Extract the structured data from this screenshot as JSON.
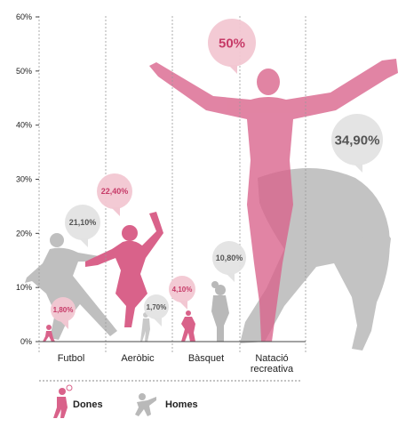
{
  "chart_data": {
    "type": "bar",
    "categories": [
      "Futbol",
      "Aeròbic",
      "Bàsquet",
      "Natació recreativa"
    ],
    "category_lines": [
      [
        "Futbol"
      ],
      [
        "Aeròbic"
      ],
      [
        "Bàsquet"
      ],
      [
        "Natació",
        "recreativa"
      ]
    ],
    "series": [
      {
        "name": "Dones",
        "values": [
          1.8,
          22.4,
          4.1,
          50.0
        ],
        "labels": [
          "1,80%",
          "22,40%",
          "4,10%",
          "50%"
        ],
        "color": "#d9628a",
        "bubble": "#f2c7d2",
        "text": "#c73b68"
      },
      {
        "name": "Homes",
        "values": [
          21.1,
          1.7,
          10.8,
          34.9
        ],
        "labels": [
          "21,10%",
          "1,70%",
          "10,80%",
          "34,90%"
        ],
        "color": "#b9b9b9",
        "bubble": "#e3e3e3",
        "text": "#555555"
      }
    ],
    "y_ticks": [
      "0%",
      "10%",
      "20%",
      "30%",
      "40%",
      "50%",
      "60%"
    ],
    "ylim": [
      0,
      60
    ],
    "grid": "vertical-dashed",
    "legend_position": "bottom-left"
  },
  "legend": {
    "dones_label": "Dones",
    "homes_label": "Homes"
  },
  "colors": {
    "women": "#d9628a",
    "men": "#b9b9b9",
    "axis": "#444444",
    "grid": "#9a9a9a"
  },
  "icons": [
    "female-silhouette-icon",
    "male-silhouette-icon"
  ]
}
